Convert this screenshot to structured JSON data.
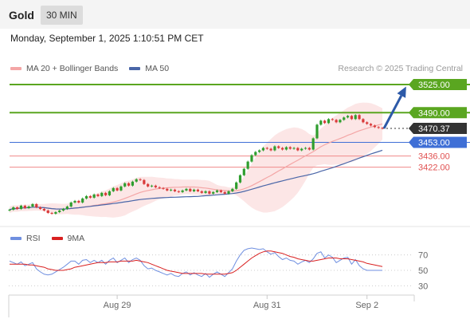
{
  "header": {
    "instrument": "Gold",
    "timeframe": "30 MIN"
  },
  "datetime": "Monday, September 1, 2025 1:10:51 PM CET",
  "credit": "Research © 2025 Trading Central",
  "colors": {
    "bollinger": "#f4a6a6",
    "ma50": "#4a66a8",
    "resistance": "#5aa620",
    "current_line": "#333333",
    "support_pivot": "#3f6fd6",
    "support": "#f08a8a",
    "rsi": "#6f8fe0",
    "rsi_ma": "#d92020",
    "arrow": "#2d5aa8",
    "candle_up": "#2e9e2e",
    "candle_down": "#d93a3a"
  },
  "chart_data": [
    {
      "type": "candlestick",
      "legend": [
        {
          "name": "MA 20 + Bollinger Bands",
          "color": "#f4a6a6"
        },
        {
          "name": "MA 50",
          "color": "#4a66a8"
        }
      ],
      "levels": [
        {
          "value": 3525.0,
          "label": "3525.00",
          "kind": "resistance"
        },
        {
          "value": 3490.0,
          "label": "3490.00",
          "kind": "resistance"
        },
        {
          "value": 3470.37,
          "label": "3470.37",
          "kind": "current"
        },
        {
          "value": 3453.0,
          "label": "3453.00",
          "kind": "pivot"
        },
        {
          "value": 3436.0,
          "label": "3436.00",
          "kind": "support"
        },
        {
          "value": 3422.0,
          "label": "3422.00",
          "kind": "support"
        }
      ],
      "ylim": [
        3362,
        3534
      ],
      "close": [
        3369,
        3372,
        3370,
        3374,
        3371,
        3373,
        3376,
        3372,
        3370,
        3368,
        3365,
        3364,
        3366,
        3368,
        3370,
        3373,
        3378,
        3380,
        3378,
        3383,
        3386,
        3384,
        3388,
        3386,
        3390,
        3387,
        3392,
        3396,
        3393,
        3398,
        3402,
        3399,
        3404,
        3407,
        3406,
        3401,
        3398,
        3399,
        3397,
        3396,
        3395,
        3393,
        3394,
        3392,
        3391,
        3393,
        3395,
        3392,
        3394,
        3392,
        3390,
        3392,
        3389,
        3391,
        3393,
        3391,
        3389,
        3392,
        3395,
        3403,
        3412,
        3420,
        3429,
        3437,
        3441,
        3443,
        3446,
        3445,
        3443,
        3448,
        3446,
        3444,
        3447,
        3445,
        3446,
        3443,
        3445,
        3446,
        3444,
        3458,
        3475,
        3480,
        3477,
        3482,
        3481,
        3478,
        3481,
        3484,
        3486,
        3482,
        3487,
        3482,
        3478,
        3476,
        3474,
        3472,
        3471,
        3470.37
      ],
      "forecast_target": 3525.0,
      "x_ticks": [
        {
          "label": "Aug 29",
          "index": 28
        },
        {
          "label": "Aug 31",
          "index": 67
        },
        {
          "label": "Sep 2",
          "index": 93
        }
      ]
    },
    {
      "type": "line",
      "legend": [
        {
          "name": "RSI",
          "color": "#6f8fe0"
        },
        {
          "name": "9MA",
          "color": "#d92020"
        }
      ],
      "ylim": [
        20,
        80
      ],
      "y_ticks": [
        70,
        50,
        30
      ],
      "series": [
        {
          "name": "RSI",
          "values": [
            62,
            60,
            58,
            61,
            56,
            58,
            60,
            52,
            48,
            45,
            44,
            45,
            48,
            51,
            54,
            58,
            62,
            62,
            58,
            63,
            64,
            60,
            63,
            60,
            63,
            58,
            63,
            66,
            60,
            63,
            66,
            60,
            64,
            66,
            63,
            56,
            52,
            53,
            50,
            48,
            46,
            44,
            46,
            43,
            42,
            46,
            48,
            44,
            47,
            44,
            42,
            46,
            41,
            45,
            48,
            45,
            42,
            47,
            52,
            62,
            70,
            76,
            78,
            79,
            78,
            77,
            78,
            74,
            71,
            73,
            68,
            64,
            66,
            63,
            62,
            58,
            61,
            63,
            60,
            65,
            72,
            74,
            66,
            70,
            67,
            60,
            63,
            66,
            67,
            58,
            64,
            56,
            52,
            50,
            50,
            50,
            50,
            50
          ]
        },
        {
          "name": "9MA",
          "values": [
            58,
            58,
            58,
            58,
            58,
            57,
            57,
            56,
            55,
            54,
            52,
            51,
            50,
            50,
            50,
            51,
            52,
            54,
            55,
            56,
            57,
            58,
            59,
            60,
            60,
            60,
            61,
            61,
            61,
            62,
            62,
            62,
            62,
            63,
            62,
            61,
            60,
            58,
            56,
            54,
            52,
            50,
            49,
            48,
            47,
            46,
            46,
            46,
            46,
            46,
            46,
            45,
            45,
            45,
            45,
            45,
            45,
            46,
            47,
            50,
            54,
            58,
            62,
            66,
            69,
            72,
            74,
            75,
            75,
            74,
            73,
            72,
            70,
            68,
            67,
            65,
            64,
            63,
            62,
            62,
            63,
            64,
            65,
            66,
            66,
            66,
            65,
            65,
            65,
            64,
            63,
            62,
            61,
            59,
            58,
            57,
            56,
            55
          ]
        }
      ]
    }
  ]
}
